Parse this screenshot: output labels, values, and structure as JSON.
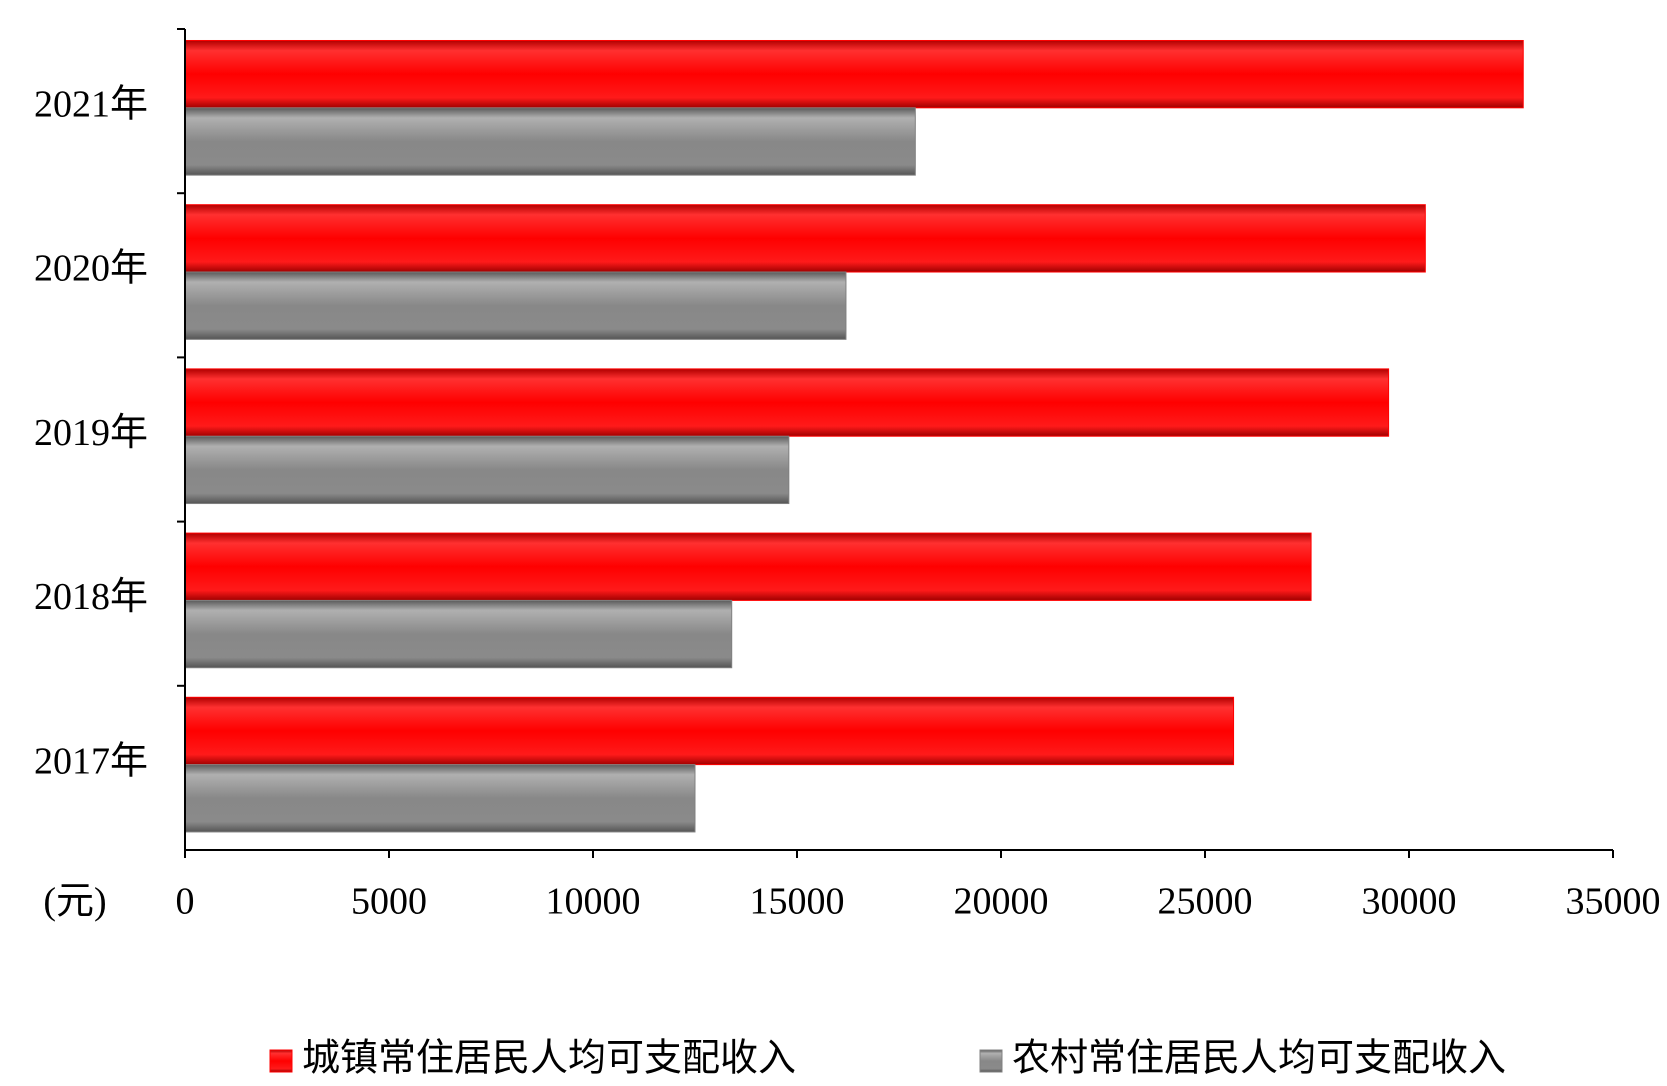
{
  "chart_data": {
    "type": "hbar",
    "categories": [
      "2017年",
      "2018年",
      "2019年",
      "2020年",
      "2021年"
    ],
    "series": [
      {
        "name": "城镇常住居民人均可支配收入",
        "color": "#ff0000",
        "values": [
          25700,
          27600,
          29500,
          30400,
          32800
        ]
      },
      {
        "name": "农村常住居民人均可支配收入",
        "color": "#808080",
        "values": [
          12500,
          13400,
          14800,
          16200,
          17900
        ]
      }
    ],
    "x_label": "(元)",
    "xlim": [
      0,
      35000
    ],
    "xticks": [
      0,
      5000,
      10000,
      15000,
      20000,
      25000,
      30000,
      35000
    ],
    "legend": "bottom"
  }
}
